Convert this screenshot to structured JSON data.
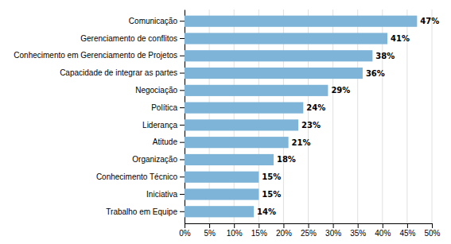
{
  "chart_data": {
    "type": "bar",
    "orientation": "horizontal",
    "categories": [
      "Trabalho em Equipe",
      "Iniciativa",
      "Conhecimento Técnico",
      "Organização",
      "Atitude",
      "Liderança",
      "Política",
      "Negociação",
      "Capacidade de integrar as partes",
      "Conhecimento em Gerenciamento de Projetos",
      "Gerenciamento de conflitos",
      "Comunicação"
    ],
    "values": [
      14,
      15,
      15,
      18,
      21,
      23,
      24,
      29,
      36,
      38,
      41,
      47
    ],
    "value_labels": [
      "14%",
      "15%",
      "15%",
      "18%",
      "21%",
      "23%",
      "24%",
      "29%",
      "36%",
      "38%",
      "41%",
      "47%"
    ],
    "data_labels": true,
    "color": "#7eb4d8",
    "xlim": [
      0,
      50
    ],
    "xticks": [
      {
        "value": 0,
        "label": "0%"
      },
      {
        "value": 5,
        "label": "5%"
      },
      {
        "value": 10,
        "label": "10%"
      },
      {
        "value": 15,
        "label": "15%"
      },
      {
        "value": 20,
        "label": "20%"
      },
      {
        "value": 25,
        "label": "25%"
      },
      {
        "value": 30,
        "label": "30%"
      },
      {
        "value": 35,
        "label": "35%"
      },
      {
        "value": 40,
        "label": "40%"
      },
      {
        "value": 45,
        "label": "45%"
      },
      {
        "value": 50,
        "label": "50%"
      }
    ],
    "grid": true
  }
}
